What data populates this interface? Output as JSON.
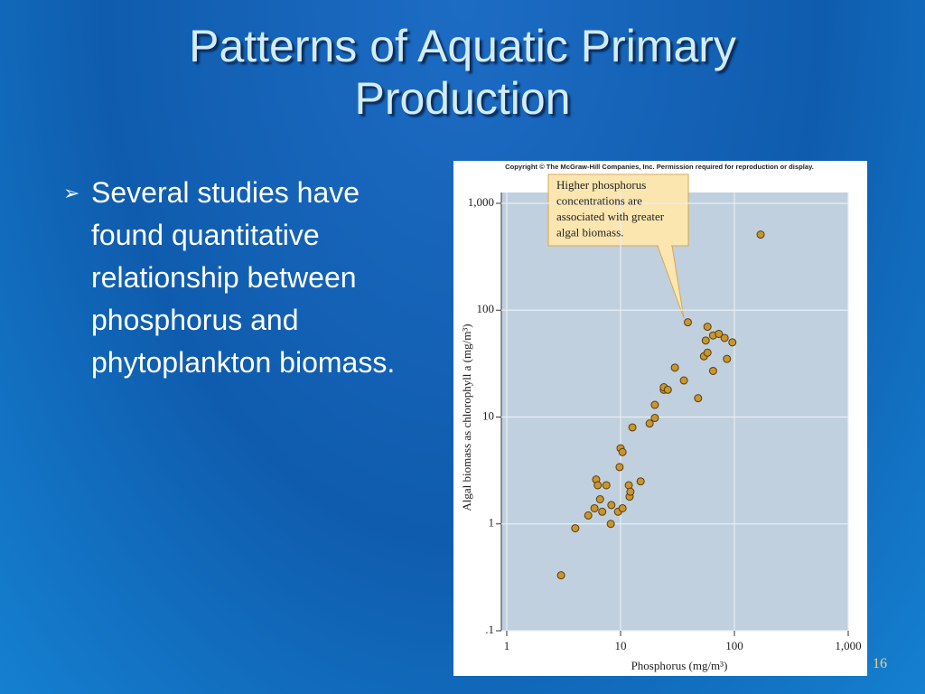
{
  "title": "Patterns of Aquatic Primary Production",
  "bullet": "Several studies have found quantitative relationship between phosphorus and phytoplankton biomass.",
  "slide_number": "16",
  "chart_data": {
    "type": "scatter",
    "copyright": "Copyright © The McGraw-Hill Companies, Inc. Permission required for reproduction or display.",
    "annotation": [
      "Higher phosphorus",
      "concentrations are",
      "associated with greater",
      "algal biomass."
    ],
    "xlabel": "Phosphorus (mg/m³)",
    "ylabel": "Algal biomass as chlorophyll a (mg/m³)",
    "xscale": "log",
    "yscale": "log",
    "grid": true,
    "color": "#c8962e",
    "xlim": [
      1,
      1000
    ],
    "ylim": [
      0.1,
      1000
    ],
    "xticks": [
      1,
      10,
      100,
      {
        "value": 1000,
        "label": "1,000"
      }
    ],
    "yticks": [
      {
        "value": 0.1,
        "label": ".1"
      },
      1,
      10,
      100,
      {
        "value": 1000,
        "label": "1,000"
      }
    ],
    "x": [
      3.0,
      4.0,
      5.2,
      5.9,
      6.1,
      6.3,
      6.6,
      6.9,
      7.5,
      8.2,
      8.3,
      9.5,
      9.8,
      10,
      10.4,
      10.4,
      11.8,
      12,
      12.2,
      12.7,
      15,
      18,
      20,
      20,
      24,
      24,
      26,
      30,
      36,
      39,
      48,
      54,
      56,
      58,
      58,
      65,
      65,
      73,
      82,
      86,
      96,
      170
    ],
    "values": [
      0.33,
      0.91,
      1.2,
      1.4,
      2.6,
      2.3,
      1.7,
      1.3,
      2.3,
      1.0,
      1.5,
      1.3,
      3.4,
      5.1,
      4.7,
      1.4,
      2.3,
      1.8,
      2.0,
      8.0,
      2.5,
      8.7,
      9.8,
      13,
      18,
      19,
      18,
      29,
      22,
      77,
      15,
      37,
      52,
      70,
      40,
      27,
      58,
      60,
      55,
      35,
      50,
      510
    ]
  }
}
